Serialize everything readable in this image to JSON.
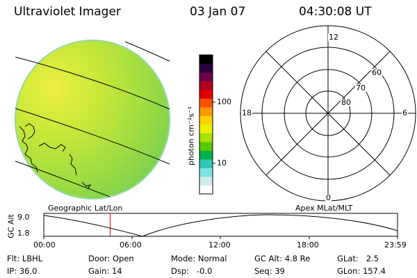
{
  "header": {
    "title": "Ultraviolet Imager",
    "date": "03 Jan 07",
    "time": "04:30:08 UT"
  },
  "colorbar": {
    "unit_label": "photon cm⁻²s⁻¹",
    "ticks": [
      "100",
      "10"
    ],
    "colors": [
      "#ffffff",
      "#d0ecec",
      "#7fe0e0",
      "#30c8b8",
      "#00b04a",
      "#58c800",
      "#a8e000",
      "#e8f000",
      "#ffd000",
      "#ff9800",
      "#ff5000",
      "#e00000",
      "#b00020",
      "#70004a",
      "#2a0040",
      "#000000"
    ]
  },
  "polar_plot": {
    "mlt_labels": {
      "top": "12",
      "left": "18",
      "right": "6",
      "bottom": "0"
    },
    "lat_labels": [
      "60",
      "70",
      "80"
    ]
  },
  "timeline": {
    "ylabel": "GC Alt",
    "yticks": [
      "9.0",
      "1.8"
    ],
    "left_caption": "Geographic Lat/Lon",
    "right_caption": "Apex MLat/MLT",
    "xticks": [
      "00:00",
      "06:00",
      "12:00",
      "18:00",
      "23:59"
    ],
    "current_time_hours": 4.502
  },
  "info": {
    "flt": "Flt: LBHL",
    "ip": "IP: 36.0",
    "door": "Door: Open",
    "gain": "Gain: 14",
    "mode": "Mode: Normal",
    "dsp": "Dsp:   -0.0",
    "gcalt": "GC Alt: 4.8 Re",
    "seq": "Seq: 39",
    "glat": "GLat:   2.5",
    "glon": "GLon: 157.4"
  }
}
